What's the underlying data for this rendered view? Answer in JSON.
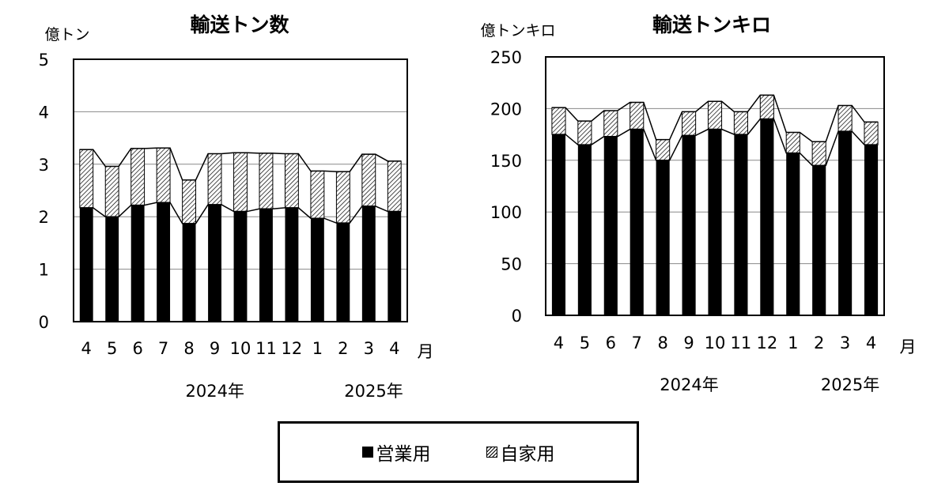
{
  "legend": {
    "commercial": "営業用",
    "private": "自家用"
  },
  "chart_data": [
    {
      "type": "bar",
      "stacked": true,
      "title": "輸送トン数",
      "unit_label": "億トン",
      "month_unit": "月",
      "categories": [
        "4",
        "5",
        "6",
        "7",
        "8",
        "9",
        "10",
        "11",
        "12",
        "1",
        "2",
        "3",
        "4"
      ],
      "year_labels": [
        {
          "text": "2024年",
          "category_index": 5.5
        },
        {
          "text": "2025年",
          "category_index": 11.5
        }
      ],
      "series": [
        {
          "name": "営業用",
          "values": [
            2.17,
            2.0,
            2.22,
            2.27,
            1.87,
            2.23,
            2.1,
            2.15,
            2.17,
            1.97,
            1.88,
            2.2,
            2.1
          ]
        },
        {
          "name": "自家用",
          "values": [
            1.11,
            0.96,
            1.08,
            1.04,
            0.83,
            0.97,
            1.12,
            1.06,
            1.03,
            0.9,
            0.98,
            0.99,
            0.96
          ]
        }
      ],
      "ylim": [
        0,
        5
      ],
      "yticks": [
        0,
        1,
        2,
        3,
        4,
        5
      ],
      "grid": true,
      "colors": {
        "commercial": "#000000",
        "private_hatch": "#000000",
        "background": "#ffffff"
      }
    },
    {
      "type": "bar",
      "stacked": true,
      "title": "輸送トンキロ",
      "unit_label": "億トンキロ",
      "month_unit": "月",
      "categories": [
        "4",
        "5",
        "6",
        "7",
        "8",
        "9",
        "10",
        "11",
        "12",
        "1",
        "2",
        "3",
        "4"
      ],
      "year_labels": [
        {
          "text": "2024年",
          "category_index": 5.5
        },
        {
          "text": "2025年",
          "category_index": 11.5
        }
      ],
      "series": [
        {
          "name": "営業用",
          "values": [
            175,
            165,
            173,
            180,
            150,
            174,
            180,
            175,
            190,
            157,
            145,
            178,
            165
          ]
        },
        {
          "name": "自家用",
          "values": [
            26,
            23,
            25,
            26,
            20,
            23,
            27,
            22,
            23,
            20,
            23,
            25,
            22
          ]
        }
      ],
      "ylim": [
        0,
        250
      ],
      "yticks": [
        0,
        50,
        100,
        150,
        200,
        250
      ],
      "grid": true,
      "colors": {
        "commercial": "#000000",
        "private_hatch": "#000000",
        "background": "#ffffff"
      }
    }
  ]
}
